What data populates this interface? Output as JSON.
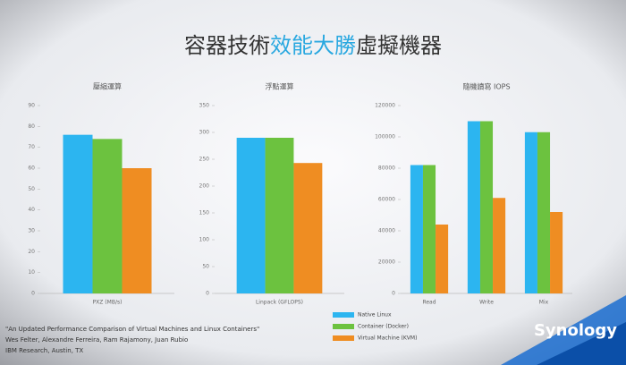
{
  "slide": {
    "title_parts": [
      "容器技術",
      "效能大勝",
      "虛擬機器"
    ],
    "footnote": [
      "\"An Updated Performance Comparison of Virtual Machines and Linux Containers\"",
      "Wes Felter, Alexandre Ferreira, Ram Rajamony, Juan Rubio",
      "IBM Research, Austin, TX"
    ],
    "logo": "Synology"
  },
  "chart_data": [
    {
      "type": "bar",
      "title": "壓縮運算",
      "categories": [
        "PXZ (MB/s)"
      ],
      "series": [
        {
          "name": "Native Linux",
          "color": "#2cb5f0",
          "values": [
            76
          ]
        },
        {
          "name": "Container (Docker)",
          "color": "#6cc23f",
          "values": [
            74
          ]
        },
        {
          "name": "Virtual Machine (KVM)",
          "color": "#ef8d22",
          "values": [
            60
          ]
        }
      ],
      "ylim": [
        0,
        90
      ],
      "yticks": [
        0,
        10,
        20,
        30,
        40,
        50,
        60,
        70,
        80,
        90
      ]
    },
    {
      "type": "bar",
      "title": "浮點運算",
      "categories": [
        "Linpack (GFLOPS)"
      ],
      "series": [
        {
          "name": "Native Linux",
          "color": "#2cb5f0",
          "values": [
            290
          ]
        },
        {
          "name": "Container (Docker)",
          "color": "#6cc23f",
          "values": [
            290
          ]
        },
        {
          "name": "Virtual Machine (KVM)",
          "color": "#ef8d22",
          "values": [
            243
          ]
        }
      ],
      "ylim": [
        0,
        350
      ],
      "yticks": [
        0,
        50,
        100,
        150,
        200,
        250,
        300,
        350
      ]
    },
    {
      "type": "bar",
      "title": "隨機讀寫 IOPS",
      "categories": [
        "Read",
        "Write",
        "Mix"
      ],
      "series": [
        {
          "name": "Native Linux",
          "color": "#2cb5f0",
          "values": [
            82000,
            110000,
            103000
          ]
        },
        {
          "name": "Container (Docker)",
          "color": "#6cc23f",
          "values": [
            82000,
            110000,
            103000
          ]
        },
        {
          "name": "Virtual Machine (KVM)",
          "color": "#ef8d22",
          "values": [
            44000,
            61000,
            52000
          ]
        }
      ],
      "ylim": [
        0,
        120000
      ],
      "yticks": [
        0,
        20000,
        40000,
        60000,
        80000,
        100000,
        120000
      ]
    }
  ]
}
